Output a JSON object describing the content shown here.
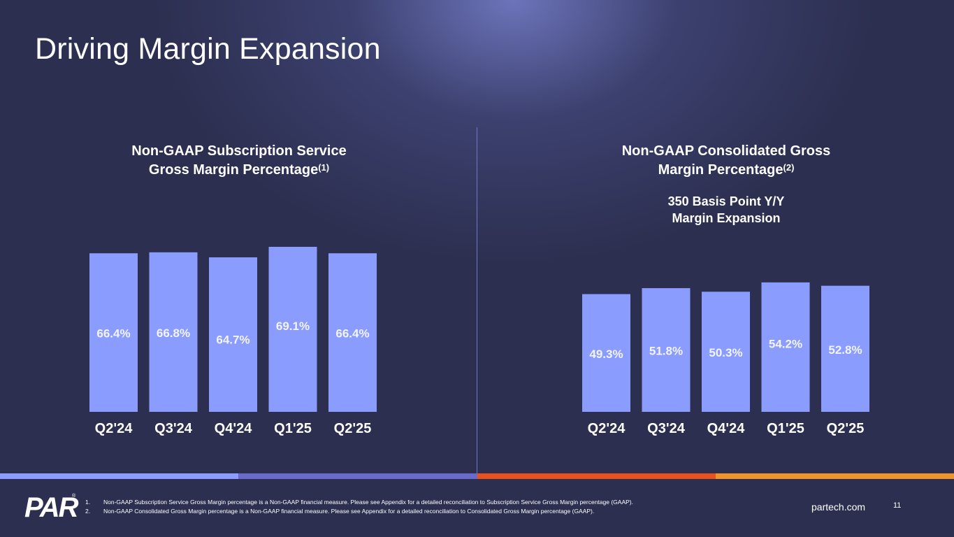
{
  "page": {
    "title": "Driving Margin Expansion",
    "site": "partech.com",
    "page_number": "11",
    "logo_text": "PAR",
    "logo_reg": "®"
  },
  "colors": {
    "background": "#2c2f4f",
    "bar": "#8b9cff",
    "bar_label": "#f2f4ff",
    "strip": [
      "#8b9cff",
      "#6a6acb",
      "#e9521d",
      "#f0932b"
    ]
  },
  "chart_data": [
    {
      "type": "bar",
      "title_line1": "Non-GAAP Subscription Service",
      "title_line2": "Gross Margin Percentage",
      "title_sup": "(1)",
      "subtitle_line1": "",
      "subtitle_line2": "",
      "categories": [
        "Q2'24",
        "Q3'24",
        "Q4'24",
        "Q1'25",
        "Q2'25"
      ],
      "values": [
        66.4,
        66.8,
        64.7,
        69.1,
        66.4
      ],
      "labels": [
        "66.4%",
        "66.8%",
        "64.7%",
        "69.1%",
        "66.4%"
      ],
      "label_offsets": [
        0,
        0,
        1,
        -1,
        0
      ],
      "ylim": [
        0,
        80
      ],
      "xlabel": "",
      "ylabel": "",
      "grid": false
    },
    {
      "type": "bar",
      "title_line1": "Non-GAAP Consolidated Gross",
      "title_line2": "Margin Percentage",
      "title_sup": "(2)",
      "subtitle_line1": "350 Basis Point Y/Y",
      "subtitle_line2": "Margin Expansion",
      "categories": [
        "Q2'24",
        "Q3'24",
        "Q4'24",
        "Q1'25",
        "Q2'25"
      ],
      "values": [
        49.3,
        51.8,
        50.3,
        54.2,
        52.8
      ],
      "labels": [
        "49.3%",
        "51.8%",
        "50.3%",
        "54.2%",
        "52.8%"
      ],
      "label_offsets": [
        0,
        0,
        0,
        -1,
        0
      ],
      "ylim": [
        0,
        80
      ],
      "xlabel": "",
      "ylabel": "",
      "grid": false
    }
  ],
  "footnotes": [
    {
      "num": "1.",
      "text": "Non-GAAP Subscription Service Gross Margin percentage is a Non-GAAP financial measure. Please see Appendix for a detailed reconciliation to Subscription Service Gross Margin percentage (GAAP)."
    },
    {
      "num": "2.",
      "text": "Non-GAAP Consolidated Gross Margin percentage is a Non-GAAP financial measure. Please see Appendix for a detailed reconciliation to Consolidated Gross Margin percentage (GAAP)."
    }
  ]
}
